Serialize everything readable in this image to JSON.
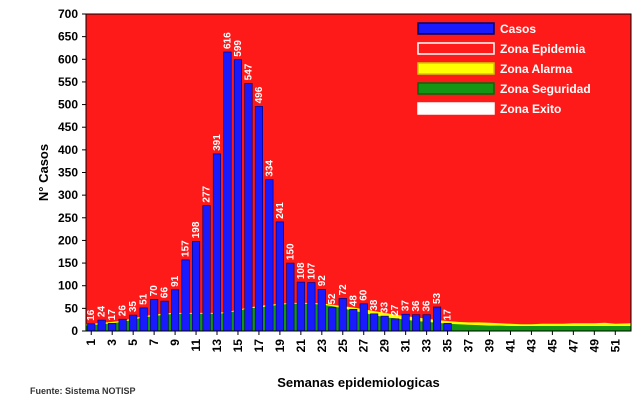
{
  "chart_data": {
    "type": "bar",
    "title": "",
    "xlabel": "Semanas epidemiologicas",
    "ylabel": "N° Casos",
    "ylim": [
      0,
      700
    ],
    "yticks": [
      0,
      50,
      100,
      150,
      200,
      250,
      300,
      350,
      400,
      450,
      500,
      550,
      600,
      650,
      700
    ],
    "x_tick_labels": [
      "1",
      "3",
      "5",
      "7",
      "9",
      "11",
      "13",
      "15",
      "17",
      "19",
      "21",
      "23",
      "25",
      "27",
      "29",
      "31",
      "33",
      "35",
      "37",
      "39",
      "41",
      "43",
      "45",
      "47",
      "49",
      "51"
    ],
    "weeks": [
      1,
      2,
      3,
      4,
      5,
      6,
      7,
      8,
      9,
      10,
      11,
      12,
      13,
      14,
      15,
      16,
      17,
      18,
      19,
      20,
      21,
      22,
      23,
      24,
      25,
      26,
      27,
      28,
      29,
      30,
      31,
      32,
      33,
      34,
      35,
      36,
      37,
      38,
      39,
      40,
      41,
      42,
      43,
      44,
      45,
      46,
      47,
      48,
      49,
      50,
      51,
      52
    ],
    "series": [
      {
        "name": "Casos",
        "type": "bar",
        "values": [
          16,
          24,
          17,
          26,
          35,
          51,
          70,
          66,
          91,
          157,
          198,
          277,
          391,
          616,
          599,
          547,
          496,
          334,
          241,
          150,
          108,
          107,
          92,
          52,
          72,
          48,
          60,
          38,
          33,
          27,
          37,
          36,
          36,
          53,
          17
        ],
        "data_labels": [
          "16",
          "24",
          "17",
          "26",
          "35",
          "51",
          "70",
          "66",
          "91",
          "157",
          "198",
          "277",
          "391",
          "616",
          "599",
          "547",
          "496",
          "334",
          "241",
          "150",
          "108",
          "107",
          "92",
          "52",
          "72",
          "48",
          "60",
          "38",
          "33",
          "27",
          "37",
          "36",
          "36",
          "53",
          "17"
        ]
      },
      {
        "name": "Zona Seguridad",
        "type": "area",
        "values": [
          12,
          15,
          17,
          20,
          25,
          30,
          33,
          36,
          38,
          38,
          38,
          38,
          38,
          40,
          45,
          50,
          52,
          55,
          58,
          60,
          60,
          60,
          58,
          55,
          50,
          45,
          40,
          35,
          30,
          28,
          25,
          22,
          20,
          18,
          16,
          15,
          14,
          13,
          12,
          12,
          11,
          11,
          11,
          11,
          11,
          11,
          11,
          11,
          11,
          11,
          11,
          11
        ]
      },
      {
        "name": "Zona Alarma",
        "type": "area",
        "values": [
          15,
          18,
          20,
          23,
          28,
          33,
          36,
          39,
          40,
          40,
          40,
          40,
          40,
          42,
          47,
          52,
          55,
          58,
          60,
          62,
          62,
          62,
          61,
          58,
          55,
          52,
          48,
          44,
          40,
          36,
          33,
          30,
          27,
          24,
          22,
          20,
          19,
          19,
          18,
          17,
          16,
          15,
          15,
          16,
          16,
          16,
          17,
          17,
          17,
          18,
          16,
          17
        ]
      },
      {
        "name": "Zona Epidemia",
        "type": "area",
        "values": [
          700,
          700,
          700,
          700,
          700,
          700,
          700,
          700,
          700,
          700,
          700,
          700,
          700,
          700,
          700,
          700,
          700,
          700,
          700,
          700,
          700,
          700,
          700,
          700,
          700,
          700,
          700,
          700,
          700,
          700,
          700,
          700,
          700,
          700,
          700,
          700,
          700,
          700,
          700,
          700,
          700,
          700,
          700,
          700,
          700,
          700,
          700,
          700,
          700,
          700,
          700,
          700
        ]
      },
      {
        "name": "Zona Exito",
        "type": "area",
        "values": []
      }
    ],
    "legend": {
      "placement": "top-right",
      "entries": [
        "Casos",
        "Zona Epidemia",
        "Zona Alarma",
        "Zona Seguridad",
        "Zona Exito"
      ]
    },
    "colors": {
      "casos": "#1a1aff",
      "epidemia": "#ff1a1a",
      "alarma": "#ffff00",
      "seguridad": "#149614",
      "exito": "#ffffff"
    },
    "grid": false
  },
  "footnote": "Fuente: Sistema NOTISP"
}
